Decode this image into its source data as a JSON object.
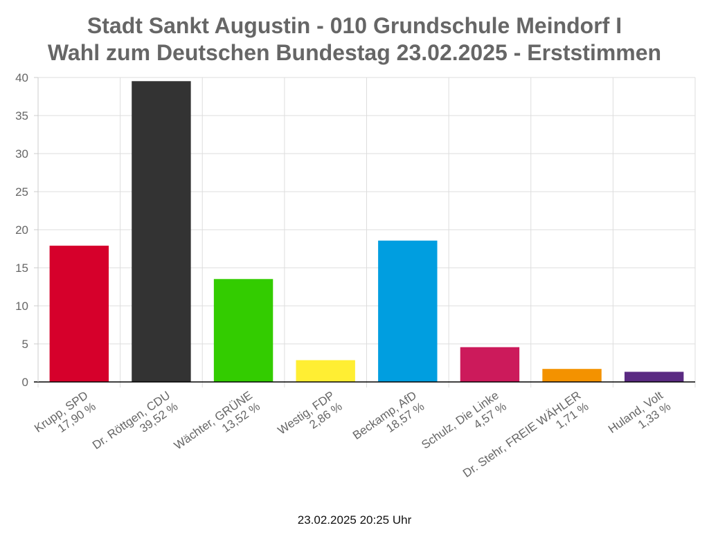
{
  "chart_data": {
    "type": "bar",
    "title_lines": [
      "Stadt Sankt Augustin - 010 Grundschule Meindorf I",
      "Wahl zum Deutschen Bundestag 23.02.2025  - Erststimmen"
    ],
    "categories": [
      [
        "Krupp, SPD",
        "17,90 %"
      ],
      [
        "Dr. Röttgen, CDU",
        "39,52 %"
      ],
      [
        "Wächter, GRÜNE",
        "13,52 %"
      ],
      [
        "Westig, FDP",
        "2,86 %"
      ],
      [
        "Beckamp, AfD",
        "18,57 %"
      ],
      [
        "Schulz, Die Linke",
        "4,57 %"
      ],
      [
        "Dr. Stehr, FREIE WÄHLER",
        "1,71 %"
      ],
      [
        "Huland, Volt",
        "1,33 %"
      ]
    ],
    "values": [
      17.9,
      39.52,
      13.52,
      2.86,
      18.57,
      4.57,
      1.71,
      1.33
    ],
    "colors": [
      "#d6002b",
      "#333333",
      "#33cc00",
      "#ffee33",
      "#009ee0",
      "#cc1a5b",
      "#f39200",
      "#5a2a82"
    ],
    "ylim": [
      0,
      40
    ],
    "yticks": [
      0,
      5,
      10,
      15,
      20,
      25,
      30,
      35,
      40
    ],
    "grid": true,
    "xlabel": "",
    "ylabel": ""
  },
  "footer": {
    "timestamp": "23.02.2025 20:25 Uhr"
  }
}
